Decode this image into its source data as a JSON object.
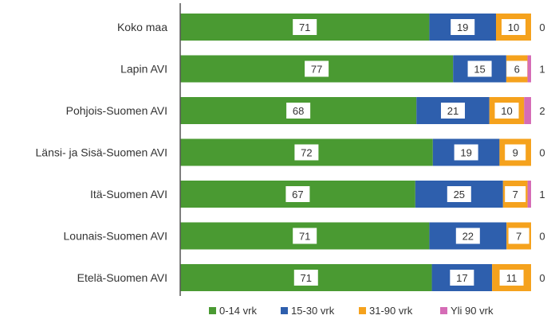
{
  "chart_data": {
    "type": "bar",
    "orientation": "horizontal",
    "stacked": "percent",
    "categories": [
      "Koko maa",
      "Lapin AVI",
      "Pohjois-Suomen AVI",
      "Länsi- ja Sisä-Suomen AVI",
      "Itä-Suomen AVI",
      "Lounais-Suomen AVI",
      "Etelä-Suomen AVI"
    ],
    "series": [
      {
        "name": "0-14 vrk",
        "color": "#4a9a32",
        "values": [
          71,
          77,
          68,
          72,
          67,
          71,
          71
        ]
      },
      {
        "name": "15-30 vrk",
        "color": "#2e5fad",
        "values": [
          19,
          15,
          21,
          19,
          25,
          22,
          17
        ]
      },
      {
        "name": "31-90 vrk",
        "color": "#f5a21d",
        "values": [
          10,
          6,
          10,
          9,
          7,
          7,
          11
        ]
      },
      {
        "name": "Yli 90 vrk",
        "color": "#d56cb6",
        "values": [
          0,
          1,
          2,
          0,
          1,
          0,
          0
        ]
      }
    ],
    "legend_position": "bottom",
    "grid": false
  }
}
